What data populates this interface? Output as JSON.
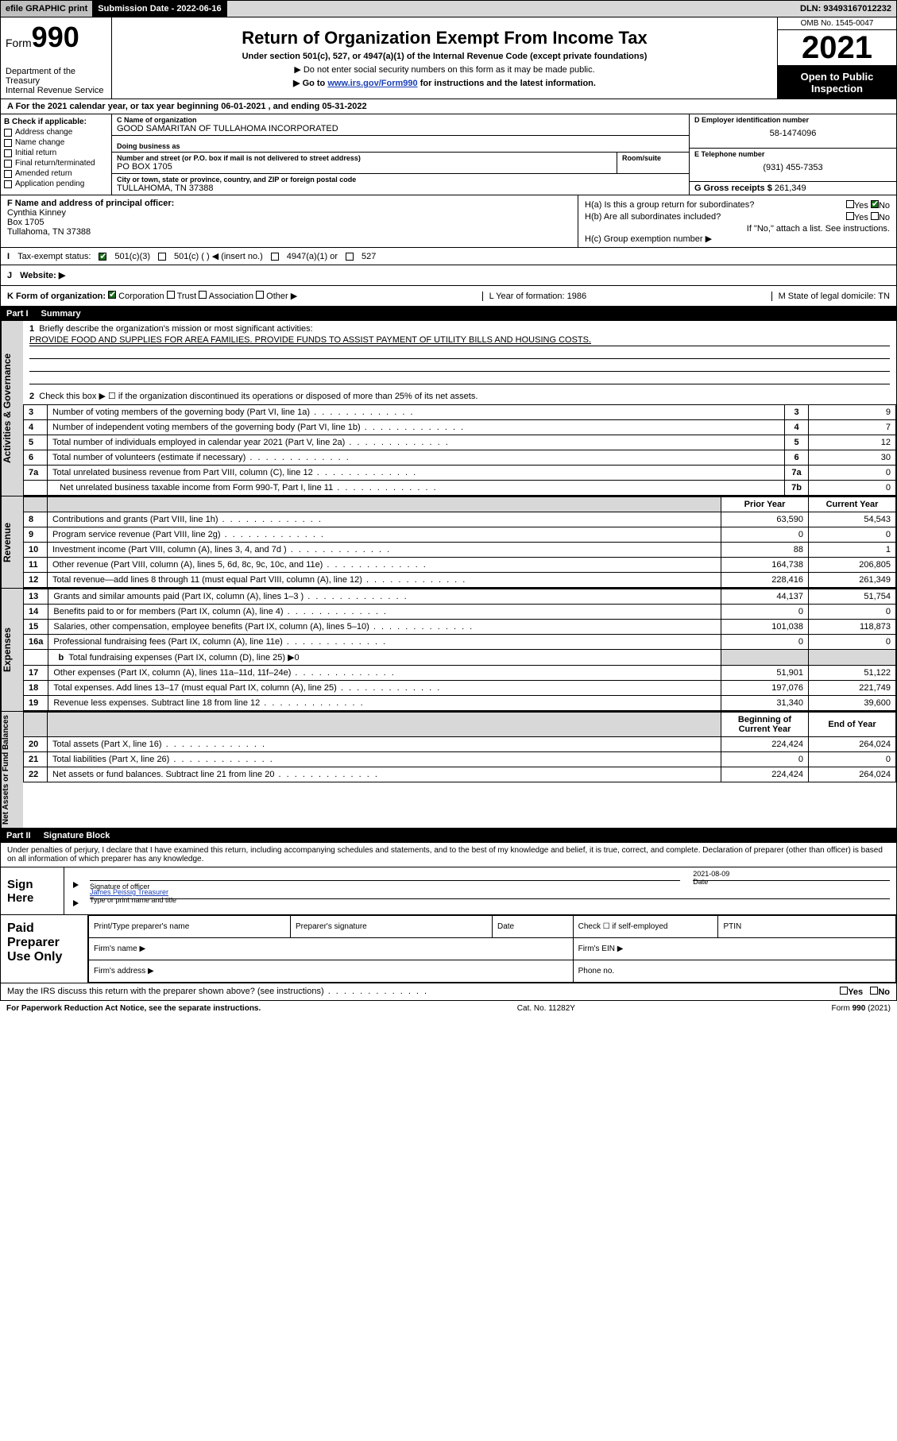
{
  "topbar": {
    "efile": "efile GRAPHIC print",
    "subdate_label": "Submission Date - 2022-06-16",
    "dln": "DLN: 93493167012232"
  },
  "header": {
    "form_word": "Form",
    "form_num": "990",
    "dept": "Department of the Treasury\nInternal Revenue Service",
    "title": "Return of Organization Exempt From Income Tax",
    "sub1": "Under section 501(c), 527, or 4947(a)(1) of the Internal Revenue Code (except private foundations)",
    "sub2": "▶ Do not enter social security numbers on this form as it may be made public.",
    "sub3_pre": "▶ Go to ",
    "sub3_link": "www.irs.gov/Form990",
    "sub3_post": " for instructions and the latest information.",
    "omb": "OMB No. 1545-0047",
    "year": "2021",
    "open": "Open to Public Inspection"
  },
  "lineA": "A For the 2021 calendar year, or tax year beginning 06-01-2021   , and ending 05-31-2022",
  "B": {
    "hdr": "B Check if applicable:",
    "items": [
      "Address change",
      "Name change",
      "Initial return",
      "Final return/terminated",
      "Amended return",
      "Application pending"
    ]
  },
  "C": {
    "name_label": "C Name of organization",
    "name": "GOOD SAMARITAN OF TULLAHOMA INCORPORATED",
    "dba_label": "Doing business as",
    "addr_label": "Number and street (or P.O. box if mail is not delivered to street address)",
    "room_label": "Room/suite",
    "addr": "PO BOX 1705",
    "city_label": "City or town, state or province, country, and ZIP or foreign postal code",
    "city": "TULLAHOMA, TN  37388"
  },
  "D": {
    "label": "D Employer identification number",
    "val": "58-1474096"
  },
  "E": {
    "label": "E Telephone number",
    "val": "(931) 455-7353"
  },
  "G": {
    "label": "G Gross receipts $",
    "val": "261,349"
  },
  "F": {
    "label": "F Name and address of principal officer:",
    "name": "Cynthia Kinney",
    "addr1": "Box 1705",
    "addr2": "Tullahoma, TN  37388"
  },
  "H": {
    "a": "H(a)  Is this a group return for subordinates?",
    "b": "H(b)  Are all subordinates included?",
    "note": "If \"No,\" attach a list. See instructions.",
    "c": "H(c)  Group exemption number ▶",
    "yes": "Yes",
    "no": "No"
  },
  "I": {
    "label": "Tax-exempt status:",
    "opts": [
      "501(c)(3)",
      "501(c) (   ) ◀ (insert no.)",
      "4947(a)(1) or",
      "527"
    ]
  },
  "J": {
    "label": "Website: ▶"
  },
  "K": {
    "left": "K Form of organization:",
    "opts": [
      "Corporation",
      "Trust",
      "Association",
      "Other ▶"
    ],
    "L": "L Year of formation: 1986",
    "M": "M State of legal domicile: TN"
  },
  "partI": {
    "num": "Part I",
    "title": "Summary"
  },
  "gov": {
    "side": "Activities & Governance",
    "q1_label": "Briefly describe the organization's mission or most significant activities:",
    "q1_text": "PROVIDE FOOD AND SUPPLIES FOR AREA FAMILIES. PROVIDE FUNDS TO ASSIST PAYMENT OF UTILITY BILLS AND HOUSING COSTS.",
    "q2": "Check this box ▶ ☐ if the organization discontinued its operations or disposed of more than 25% of its net assets.",
    "rows": [
      {
        "n": "3",
        "lbl": "Number of voting members of the governing body (Part VI, line 1a)",
        "val": "9"
      },
      {
        "n": "4",
        "lbl": "Number of independent voting members of the governing body (Part VI, line 1b)",
        "val": "7"
      },
      {
        "n": "5",
        "lbl": "Total number of individuals employed in calendar year 2021 (Part V, line 2a)",
        "val": "12"
      },
      {
        "n": "6",
        "lbl": "Total number of volunteers (estimate if necessary)",
        "val": "30"
      },
      {
        "n": "7a",
        "lbl": "Total unrelated business revenue from Part VIII, column (C), line 12",
        "val": "0"
      },
      {
        "n": "7b",
        "sub": true,
        "lbl": "Net unrelated business taxable income from Form 990-T, Part I, line 11",
        "val": "0"
      }
    ]
  },
  "rev": {
    "side": "Revenue",
    "hdr_prior": "Prior Year",
    "hdr_curr": "Current Year",
    "rows": [
      {
        "n": "8",
        "lbl": "Contributions and grants (Part VIII, line 1h)",
        "p": "63,590",
        "c": "54,543"
      },
      {
        "n": "9",
        "lbl": "Program service revenue (Part VIII, line 2g)",
        "p": "0",
        "c": "0"
      },
      {
        "n": "10",
        "lbl": "Investment income (Part VIII, column (A), lines 3, 4, and 7d )",
        "p": "88",
        "c": "1"
      },
      {
        "n": "11",
        "lbl": "Other revenue (Part VIII, column (A), lines 5, 6d, 8c, 9c, 10c, and 11e)",
        "p": "164,738",
        "c": "206,805"
      },
      {
        "n": "12",
        "lbl": "Total revenue—add lines 8 through 11 (must equal Part VIII, column (A), line 12)",
        "p": "228,416",
        "c": "261,349"
      }
    ]
  },
  "exp": {
    "side": "Expenses",
    "rows": [
      {
        "n": "13",
        "lbl": "Grants and similar amounts paid (Part IX, column (A), lines 1–3 )",
        "p": "44,137",
        "c": "51,754"
      },
      {
        "n": "14",
        "lbl": "Benefits paid to or for members (Part IX, column (A), line 4)",
        "p": "0",
        "c": "0"
      },
      {
        "n": "15",
        "lbl": "Salaries, other compensation, employee benefits (Part IX, column (A), lines 5–10)",
        "p": "101,038",
        "c": "118,873"
      },
      {
        "n": "16a",
        "lbl": "Professional fundraising fees (Part IX, column (A), line 11e)",
        "p": "0",
        "c": "0"
      },
      {
        "n": "b",
        "sub": true,
        "lbl": "Total fundraising expenses (Part IX, column (D), line 25) ▶0",
        "shade": true
      },
      {
        "n": "17",
        "lbl": "Other expenses (Part IX, column (A), lines 11a–11d, 11f–24e)",
        "p": "51,901",
        "c": "51,122"
      },
      {
        "n": "18",
        "lbl": "Total expenses. Add lines 13–17 (must equal Part IX, column (A), line 25)",
        "p": "197,076",
        "c": "221,749"
      },
      {
        "n": "19",
        "lbl": "Revenue less expenses. Subtract line 18 from line 12",
        "p": "31,340",
        "c": "39,600"
      }
    ]
  },
  "net": {
    "side": "Net Assets or Fund Balances",
    "hdr_begin": "Beginning of Current Year",
    "hdr_end": "End of Year",
    "rows": [
      {
        "n": "20",
        "lbl": "Total assets (Part X, line 16)",
        "p": "224,424",
        "c": "264,024"
      },
      {
        "n": "21",
        "lbl": "Total liabilities (Part X, line 26)",
        "p": "0",
        "c": "0"
      },
      {
        "n": "22",
        "lbl": "Net assets or fund balances. Subtract line 21 from line 20",
        "p": "224,424",
        "c": "264,024"
      }
    ]
  },
  "partII": {
    "num": "Part II",
    "title": "Signature Block"
  },
  "sig": {
    "penalty": "Under penalties of perjury, I declare that I have examined this return, including accompanying schedules and statements, and to the best of my knowledge and belief, it is true, correct, and complete. Declaration of preparer (other than officer) is based on all information of which preparer has any knowledge.",
    "sign_here": "Sign Here",
    "sig_officer": "Signature of officer",
    "date": "Date",
    "date_val": "2021-08-09",
    "typed_name": "James Peissig  Treasurer",
    "typed_label": "Type or print name and title"
  },
  "paid": {
    "left": "Paid Preparer Use Only",
    "h_print": "Print/Type preparer's name",
    "h_sig": "Preparer's signature",
    "h_date": "Date",
    "h_check": "Check ☐ if self-employed",
    "h_ptin": "PTIN",
    "firm_name": "Firm's name    ▶",
    "firm_ein": "Firm's EIN ▶",
    "firm_addr": "Firm's address ▶",
    "phone": "Phone no."
  },
  "discuss": {
    "q": "May the IRS discuss this return with the preparer shown above? (see instructions)",
    "yes": "Yes",
    "no": "No"
  },
  "footer": {
    "left": "For Paperwork Reduction Act Notice, see the separate instructions.",
    "mid": "Cat. No. 11282Y",
    "right": "Form 990 (2021)"
  }
}
